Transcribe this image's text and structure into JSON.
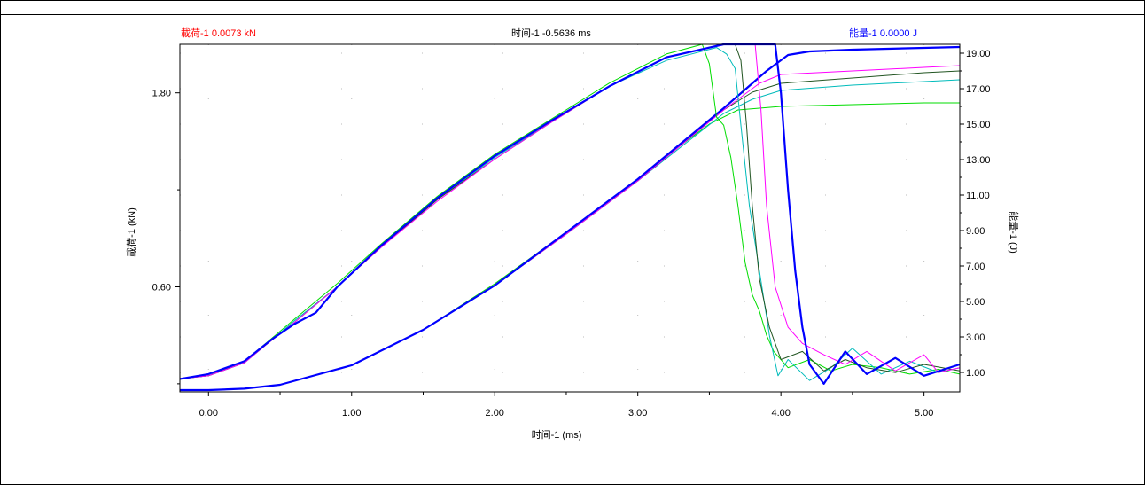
{
  "header": {
    "left_label": "載荷-1",
    "left_value": "0.0073 kN",
    "center_label": "时间-1",
    "center_value": "-0.5636 ms",
    "right_label": "能量-1",
    "right_value": "0.0000 J"
  },
  "colors": {
    "left": "#ff0000",
    "right": "#0000ff",
    "text": "#000000"
  },
  "chart_data": {
    "type": "line",
    "xlabel": "时间-1 (ms)",
    "ylabel_left": "載荷-1 (kN)",
    "ylabel_right": "能量-1 (J)",
    "xlim": [
      -0.2,
      5.25
    ],
    "ylim_left": [
      -0.05,
      2.1
    ],
    "ylim_right": [
      -0.1,
      19.5
    ],
    "x_ticks": [
      "0.00",
      "1.00",
      "2.00",
      "3.00",
      "4.00",
      "5.00"
    ],
    "y_left_ticks": [
      "0.60",
      "1.80"
    ],
    "y_right_ticks": [
      "1.00",
      "3.00",
      "5.00",
      "7.00",
      "9.00",
      "11.00",
      "13.00",
      "15.00",
      "17.00",
      "19.00"
    ],
    "grid": "dotted",
    "load_series": [
      {
        "color": "#00dd00",
        "width": 1,
        "x": [
          -0.2,
          0,
          0.25,
          0.4,
          0.6,
          0.9,
          1.2,
          1.6,
          2.0,
          2.4,
          2.8,
          3.2,
          3.45,
          3.5,
          3.55,
          3.6,
          3.65,
          3.7,
          3.75,
          3.8,
          3.85,
          3.9,
          3.95,
          4.05,
          4.2,
          4.35,
          4.5,
          4.7,
          4.9,
          5.1,
          5.25
        ],
        "y": [
          0.03,
          0.05,
          0.14,
          0.25,
          0.4,
          0.62,
          0.86,
          1.16,
          1.42,
          1.64,
          1.86,
          2.04,
          2.1,
          1.98,
          1.65,
          1.6,
          1.4,
          1.1,
          0.75,
          0.55,
          0.45,
          0.3,
          0.2,
          0.1,
          0.15,
          0.08,
          0.12,
          0.1,
          0.06,
          0.09,
          0.06
        ]
      },
      {
        "color": "#00bbbb",
        "width": 1,
        "x": [
          -0.2,
          0,
          0.25,
          0.4,
          0.6,
          0.9,
          1.2,
          1.6,
          2.0,
          2.4,
          2.8,
          3.2,
          3.55,
          3.62,
          3.68,
          3.72,
          3.78,
          3.85,
          3.92,
          3.98,
          4.05,
          4.2,
          4.35,
          4.5,
          4.7,
          4.9,
          5.1,
          5.25
        ],
        "y": [
          0.03,
          0.05,
          0.13,
          0.24,
          0.39,
          0.6,
          0.84,
          1.14,
          1.4,
          1.62,
          1.84,
          2.0,
          2.08,
          2.04,
          1.95,
          1.6,
          1.1,
          0.7,
          0.3,
          0.05,
          0.15,
          0.02,
          0.1,
          0.22,
          0.06,
          0.14,
          0.07,
          0.1
        ]
      },
      {
        "color": "#225522",
        "width": 1,
        "x": [
          -0.2,
          0,
          0.25,
          0.4,
          0.6,
          0.9,
          1.2,
          1.6,
          2.0,
          2.4,
          2.8,
          3.2,
          3.6,
          3.68,
          3.72,
          3.76,
          3.8,
          3.85,
          3.92,
          4.0,
          4.15,
          4.3,
          4.45,
          4.6,
          4.8,
          5.0,
          5.25
        ],
        "y": [
          0.03,
          0.05,
          0.13,
          0.24,
          0.38,
          0.6,
          0.84,
          1.14,
          1.39,
          1.62,
          1.84,
          2.02,
          2.15,
          2.12,
          2.0,
          1.6,
          1.1,
          0.65,
          0.35,
          0.15,
          0.2,
          0.08,
          0.15,
          0.1,
          0.07,
          0.12,
          0.08
        ]
      },
      {
        "color": "#ff00ff",
        "width": 1,
        "x": [
          -0.2,
          0,
          0.25,
          0.4,
          0.6,
          0.9,
          1.2,
          1.6,
          2.0,
          2.4,
          2.8,
          3.2,
          3.6,
          3.82,
          3.86,
          3.9,
          3.96,
          4.05,
          4.15,
          4.3,
          4.45,
          4.6,
          4.8,
          5.0,
          5.1,
          5.25
        ],
        "y": [
          0.03,
          0.05,
          0.13,
          0.24,
          0.38,
          0.6,
          0.84,
          1.13,
          1.39,
          1.62,
          1.84,
          2.02,
          2.14,
          2.15,
          1.7,
          1.1,
          0.6,
          0.35,
          0.25,
          0.18,
          0.12,
          0.2,
          0.08,
          0.18,
          0.07,
          0.1
        ]
      },
      {
        "color": "#0000ff",
        "width": 2.2,
        "x": [
          -0.2,
          0,
          0.25,
          0.45,
          0.6,
          0.75,
          0.9,
          1.2,
          1.6,
          2.0,
          2.4,
          2.8,
          3.2,
          3.6,
          3.85,
          3.96,
          4.0,
          4.05,
          4.1,
          4.15,
          4.2,
          4.3,
          4.45,
          4.6,
          4.8,
          5.0,
          5.25
        ],
        "y": [
          0.03,
          0.06,
          0.14,
          0.28,
          0.37,
          0.44,
          0.6,
          0.85,
          1.15,
          1.41,
          1.63,
          1.84,
          2.02,
          2.17,
          2.22,
          2.23,
          1.8,
          1.2,
          0.7,
          0.35,
          0.12,
          0.0,
          0.2,
          0.06,
          0.16,
          0.05,
          0.12
        ]
      }
    ],
    "energy_series": [
      {
        "color": "#00dd00",
        "width": 1,
        "x": [
          -0.2,
          0,
          0.25,
          0.5,
          1.0,
          1.5,
          2.0,
          2.5,
          3.0,
          3.3,
          3.5,
          3.7,
          4.0,
          4.5,
          5.0,
          5.25
        ],
        "y": [
          0,
          0,
          0.08,
          0.3,
          1.4,
          3.4,
          6.0,
          8.9,
          11.9,
          13.8,
          15.0,
          15.8,
          16.0,
          16.1,
          16.2,
          16.2
        ]
      },
      {
        "color": "#00bbbb",
        "width": 1,
        "x": [
          -0.2,
          0,
          0.25,
          0.5,
          1.0,
          1.5,
          2.0,
          2.5,
          3.0,
          3.3,
          3.6,
          3.8,
          4.0,
          4.5,
          5.0,
          5.25
        ],
        "y": [
          0,
          0,
          0.08,
          0.3,
          1.4,
          3.4,
          5.9,
          8.8,
          11.8,
          13.7,
          15.6,
          16.4,
          16.9,
          17.2,
          17.4,
          17.5
        ]
      },
      {
        "color": "#225522",
        "width": 1,
        "x": [
          -0.2,
          0,
          0.25,
          0.5,
          1.0,
          1.5,
          2.0,
          2.5,
          3.0,
          3.3,
          3.6,
          3.8,
          4.0,
          4.5,
          5.0,
          5.25
        ],
        "y": [
          0,
          0,
          0.08,
          0.3,
          1.4,
          3.4,
          5.9,
          8.8,
          11.8,
          13.8,
          15.8,
          16.8,
          17.3,
          17.6,
          17.9,
          18.0
        ]
      },
      {
        "color": "#ff00ff",
        "width": 1,
        "x": [
          -0.2,
          0,
          0.25,
          0.5,
          1.0,
          1.5,
          2.0,
          2.5,
          3.0,
          3.3,
          3.6,
          3.85,
          4.0,
          4.5,
          5.0,
          5.25
        ],
        "y": [
          0,
          0,
          0.08,
          0.3,
          1.4,
          3.4,
          5.9,
          8.8,
          11.8,
          13.8,
          15.8,
          17.3,
          17.8,
          18.0,
          18.2,
          18.3
        ]
      },
      {
        "color": "#0000ff",
        "width": 2.2,
        "x": [
          -0.2,
          0,
          0.25,
          0.5,
          1.0,
          1.5,
          2.0,
          2.5,
          3.0,
          3.3,
          3.6,
          3.9,
          4.05,
          4.2,
          4.5,
          5.0,
          5.25
        ],
        "y": [
          0,
          0,
          0.08,
          0.3,
          1.4,
          3.4,
          5.9,
          8.9,
          11.9,
          13.9,
          15.9,
          18.0,
          18.9,
          19.1,
          19.2,
          19.3,
          19.35
        ]
      }
    ]
  }
}
